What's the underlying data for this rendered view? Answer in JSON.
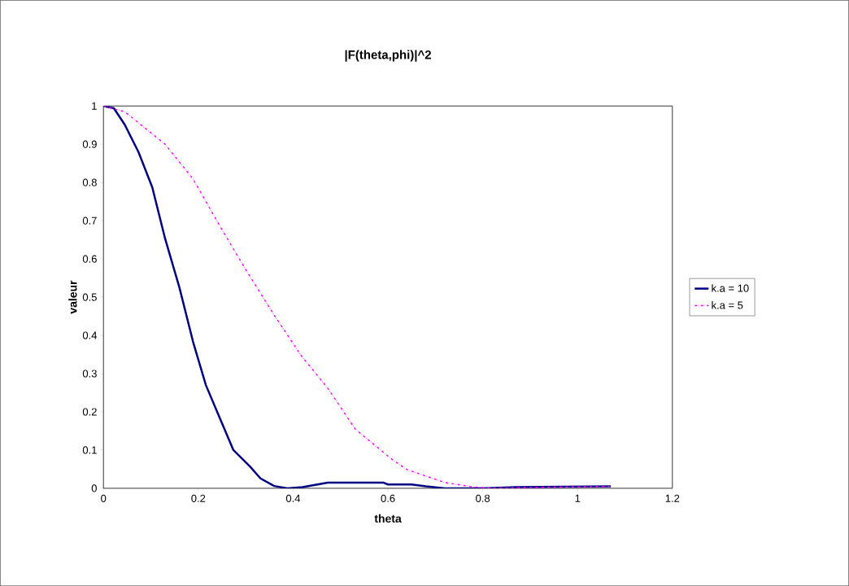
{
  "chart_data": {
    "type": "line",
    "title": "|F(theta,phi)|^2",
    "xlabel": "theta",
    "ylabel": "valeur",
    "xlim": [
      0,
      1.2
    ],
    "ylim": [
      0,
      1
    ],
    "xticks": [
      0,
      0.2,
      0.4,
      0.6,
      0.8,
      1,
      1.2
    ],
    "yticks": [
      0,
      0.1,
      0.2,
      0.3,
      0.4,
      0.5,
      0.6,
      0.7,
      0.8,
      0.9,
      1
    ],
    "legend": "right",
    "grid": false,
    "marker": "none",
    "series": [
      {
        "name": "k.a = 10",
        "color": "#000080",
        "line_style": "solid",
        "x": [
          0,
          0.022,
          0.045,
          0.074,
          0.103,
          0.13,
          0.16,
          0.189,
          0.216,
          0.25,
          0.274,
          0.309,
          0.331,
          0.36,
          0.388,
          0.42,
          0.473,
          0.59,
          0.6,
          0.65,
          0.68,
          0.72,
          0.8,
          0.87,
          1.07
        ],
        "values": [
          1,
          0.994,
          0.951,
          0.879,
          0.787,
          0.653,
          0.526,
          0.383,
          0.27,
          0.17,
          0.1,
          0.057,
          0.026,
          0.006,
          0,
          0.003,
          0.015,
          0.015,
          0.01,
          0.01,
          0.005,
          0,
          0,
          0.003,
          0.005
        ]
      },
      {
        "name": "k.a = 5",
        "color": "#ff00ff",
        "line_style": "dashdotted",
        "x": [
          0,
          0.045,
          0.13,
          0.189,
          0.245,
          0.302,
          0.36,
          0.417,
          0.473,
          0.531,
          0.605,
          0.64,
          0.72,
          0.777,
          0.82,
          0.95,
          1.07
        ],
        "values": [
          1,
          0.985,
          0.9,
          0.809,
          0.687,
          0.568,
          0.453,
          0.347,
          0.262,
          0.155,
          0.079,
          0.049,
          0.015,
          0.004,
          0,
          0.003,
          0.005
        ]
      }
    ]
  }
}
